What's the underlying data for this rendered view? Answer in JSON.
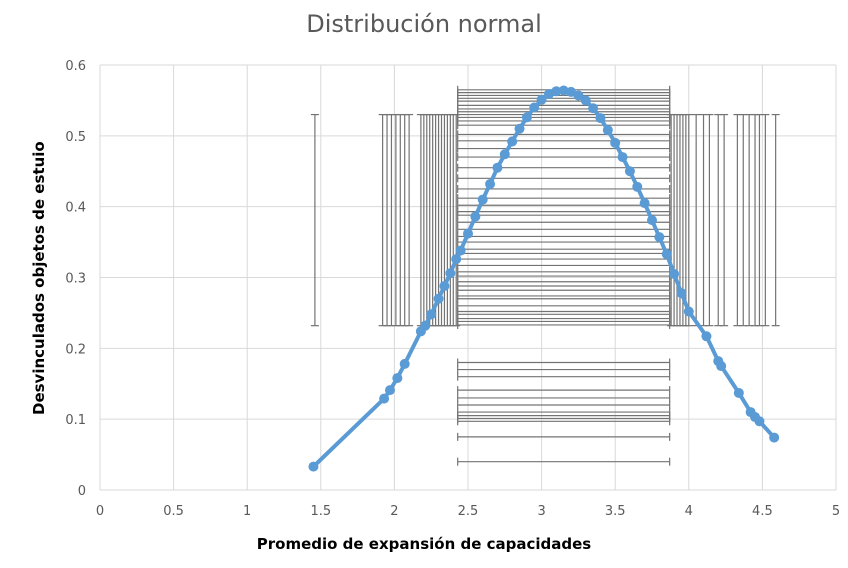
{
  "chart_data": {
    "type": "scatter",
    "title": "Distribución normal",
    "xlabel": "Promedio de expansión de capacidades",
    "ylabel": "Desvinculados objetos de estuio",
    "xlim": [
      0,
      5
    ],
    "ylim": [
      0,
      0.6
    ],
    "x_ticks": [
      "0",
      "0.5",
      "1",
      "1.5",
      "2",
      "2.5",
      "3",
      "3.5",
      "4",
      "4.5",
      "5"
    ],
    "y_ticks": [
      "0",
      "0.1",
      "0.2",
      "0.3",
      "0.4",
      "0.5",
      "0.6"
    ],
    "grid": true,
    "series": [
      {
        "type": "line-with-markers",
        "color": "#5b9bd5",
        "points": [
          [
            1.45,
            0.033
          ],
          [
            1.93,
            0.129
          ],
          [
            1.97,
            0.141
          ],
          [
            2.02,
            0.158
          ],
          [
            2.07,
            0.178
          ],
          [
            2.18,
            0.224
          ],
          [
            2.21,
            0.232
          ],
          [
            2.25,
            0.248
          ],
          [
            2.3,
            0.27
          ],
          [
            2.34,
            0.288
          ],
          [
            2.38,
            0.306
          ],
          [
            2.42,
            0.326
          ],
          [
            2.45,
            0.338
          ],
          [
            2.5,
            0.362
          ],
          [
            2.55,
            0.386
          ],
          [
            2.6,
            0.41
          ],
          [
            2.65,
            0.432
          ],
          [
            2.7,
            0.455
          ],
          [
            2.75,
            0.474
          ],
          [
            2.8,
            0.492
          ],
          [
            2.85,
            0.51
          ],
          [
            2.9,
            0.526
          ],
          [
            2.95,
            0.54
          ],
          [
            3.0,
            0.551
          ],
          [
            3.05,
            0.559
          ],
          [
            3.1,
            0.563
          ],
          [
            3.15,
            0.564
          ],
          [
            3.2,
            0.562
          ],
          [
            3.25,
            0.557
          ],
          [
            3.3,
            0.55
          ],
          [
            3.35,
            0.539
          ],
          [
            3.4,
            0.525
          ],
          [
            3.45,
            0.508
          ],
          [
            3.5,
            0.49
          ],
          [
            3.55,
            0.47
          ],
          [
            3.6,
            0.45
          ],
          [
            3.65,
            0.428
          ],
          [
            3.7,
            0.405
          ],
          [
            3.75,
            0.381
          ],
          [
            3.8,
            0.357
          ],
          [
            3.85,
            0.333
          ],
          [
            3.9,
            0.305
          ],
          [
            3.95,
            0.278
          ],
          [
            4.0,
            0.252
          ],
          [
            4.12,
            0.217
          ],
          [
            4.2,
            0.182
          ],
          [
            4.22,
            0.175
          ],
          [
            4.34,
            0.137
          ],
          [
            4.42,
            0.11
          ],
          [
            4.45,
            0.103
          ],
          [
            4.48,
            0.097
          ],
          [
            4.58,
            0.074
          ]
        ]
      }
    ],
    "error_bars": {
      "color": "#737373",
      "vertical": {
        "x": [
          1.46,
          1.92,
          1.95,
          1.98,
          2.01,
          2.04,
          2.07,
          2.1,
          2.18,
          2.2,
          2.22,
          2.24,
          2.26,
          2.28,
          2.3,
          2.32,
          2.34,
          2.36,
          2.38,
          2.4,
          2.42,
          3.88,
          3.9,
          3.92,
          3.94,
          3.96,
          3.98,
          4.0,
          4.05,
          4.1,
          4.14,
          4.2,
          4.24,
          4.33,
          4.37,
          4.41,
          4.45,
          4.48,
          4.52,
          4.59
        ],
        "y_low": 0.232,
        "y_high": 0.53
      },
      "horizontal": {
        "x_low": 2.43,
        "x_high": 3.87,
        "y": [
          0.04,
          0.075,
          0.097,
          0.101,
          0.105,
          0.11,
          0.12,
          0.13,
          0.141,
          0.16,
          0.17,
          0.18,
          0.233,
          0.238,
          0.242,
          0.248,
          0.252,
          0.26,
          0.27,
          0.274,
          0.282,
          0.288,
          0.294,
          0.302,
          0.308,
          0.317,
          0.326,
          0.334,
          0.34,
          0.35,
          0.358,
          0.368,
          0.378,
          0.388,
          0.393,
          0.402,
          0.412,
          0.425,
          0.44,
          0.455,
          0.47,
          0.482,
          0.493,
          0.502,
          0.515,
          0.521,
          0.526,
          0.53,
          0.534,
          0.538,
          0.543,
          0.549,
          0.553,
          0.557,
          0.561,
          0.565
        ]
      }
    }
  }
}
